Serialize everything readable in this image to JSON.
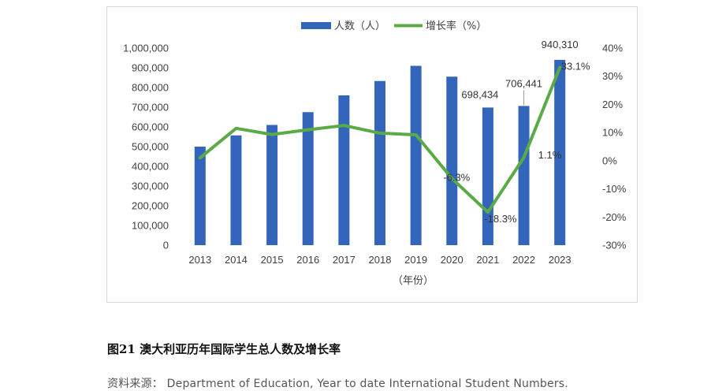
{
  "chart_data": {
    "type": "bar+line",
    "categories": [
      "2013",
      "2014",
      "2015",
      "2016",
      "2017",
      "2018",
      "2019",
      "2020",
      "2021",
      "2022",
      "2023"
    ],
    "series": [
      {
        "name": "人数（人）",
        "type": "bar",
        "axis": "left",
        "color": "#3366bb",
        "values": [
          500000,
          557000,
          610000,
          675000,
          760000,
          833000,
          910000,
          855000,
          698434,
          706441,
          940310
        ]
      },
      {
        "name": "增长率（%）",
        "type": "line",
        "axis": "right",
        "color": "#5aab46",
        "values": [
          1.0,
          11.5,
          9.3,
          11.0,
          12.5,
          9.8,
          9.2,
          -6.3,
          -18.3,
          1.1,
          33.1
        ]
      }
    ],
    "bar_labels": [
      {
        "index": 8,
        "text": "698,434"
      },
      {
        "index": 9,
        "text": "706,441"
      },
      {
        "index": 10,
        "text": "940,310"
      }
    ],
    "line_labels": [
      {
        "index": 7,
        "text": "-6.3%"
      },
      {
        "index": 8,
        "text": "-18.3%"
      },
      {
        "index": 9,
        "text": "1.1%"
      },
      {
        "index": 10,
        "text": "33.1%"
      }
    ],
    "y_left": {
      "min": 0,
      "max": 1000000,
      "step": 100000,
      "ticks": [
        "0",
        "100,000",
        "200,000",
        "300,000",
        "400,000",
        "500,000",
        "600,000",
        "700,000",
        "800,000",
        "900,000",
        "1,000,000"
      ]
    },
    "y_right": {
      "min": -30,
      "max": 40,
      "step": 10,
      "ticks": [
        "-30%",
        "-20%",
        "-10%",
        "0%",
        "10%",
        "20%",
        "30%",
        "40%"
      ]
    },
    "xlabel": "（年份）",
    "ylabel": "",
    "grid": false,
    "legend": "top"
  },
  "caption": "图21 澳大利亚历年国际学生总人数及增长率",
  "source": "资料来源： Department of Education, Year to date International Student Numbers."
}
